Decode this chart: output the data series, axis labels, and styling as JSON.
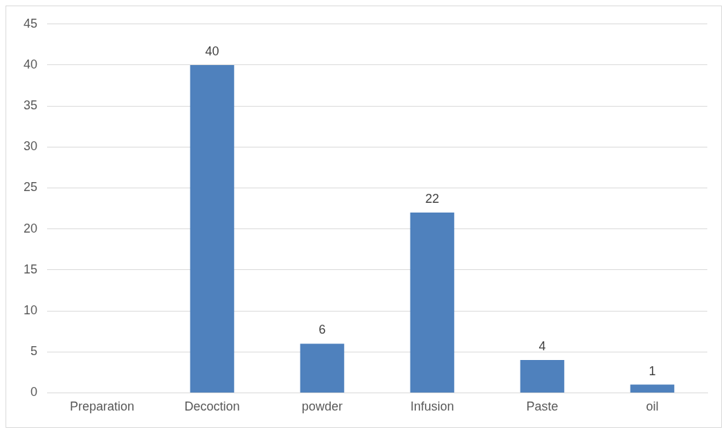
{
  "chart_data": {
    "type": "bar",
    "categories": [
      "Preparation",
      "Decoction",
      "powder",
      "Infusion",
      "Paste",
      "oil"
    ],
    "values": [
      null,
      40,
      6,
      22,
      4,
      1
    ],
    "color": "#4f81bd",
    "ylim": [
      0,
      45
    ],
    "yticks": [
      0,
      5,
      10,
      15,
      20,
      25,
      30,
      35,
      40,
      45
    ],
    "grid": "y",
    "data_labels": true
  }
}
